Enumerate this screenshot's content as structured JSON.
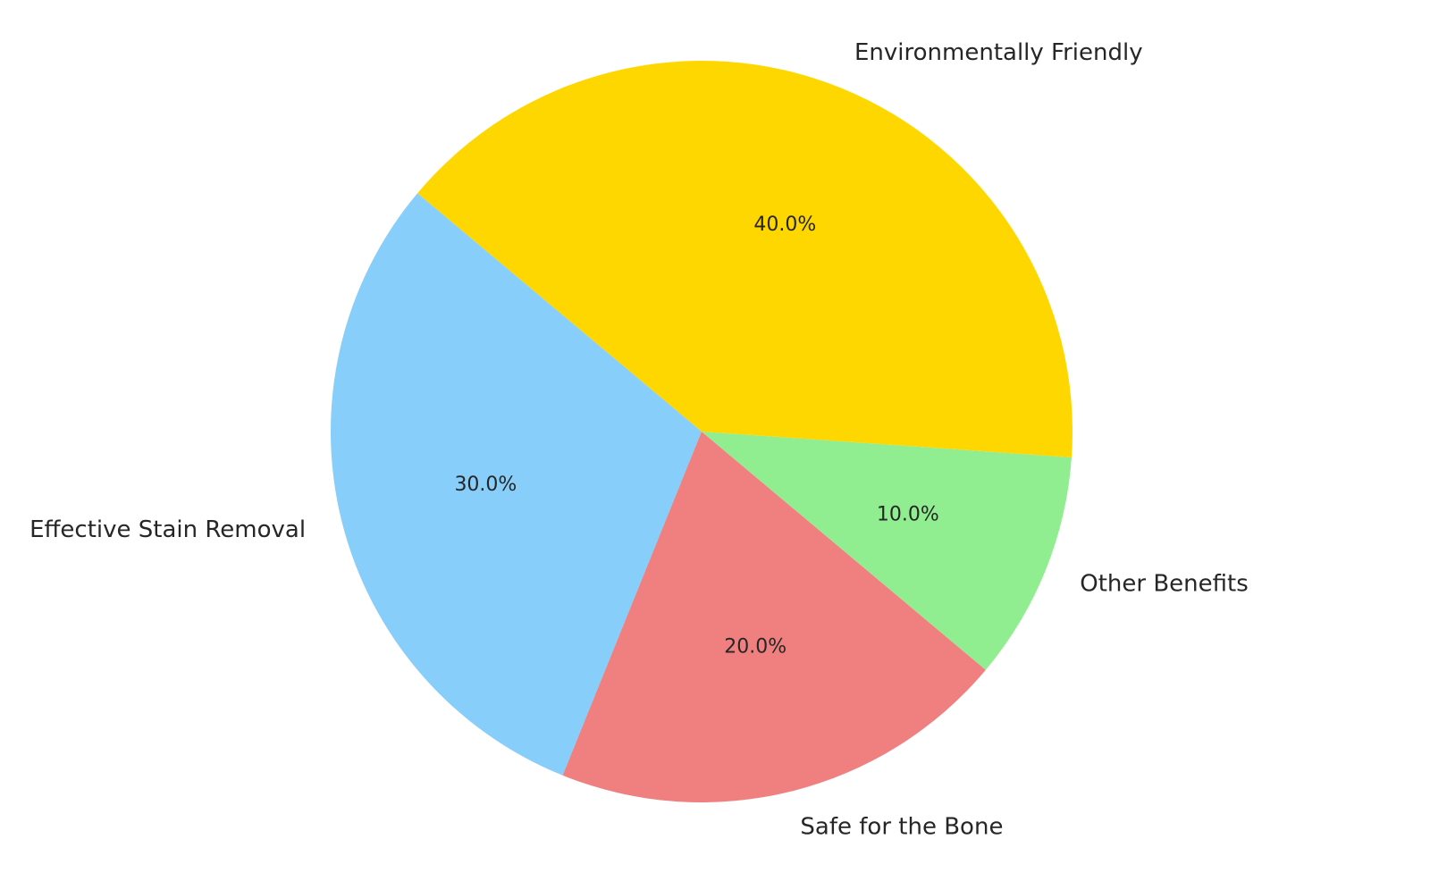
{
  "chart_data": {
    "type": "pie",
    "title": "",
    "start_angle_deg": 140,
    "direction": "counterclockwise",
    "legend": "none",
    "autopct_format": "{v}%",
    "slices": [
      {
        "label": "Effective Stain Removal",
        "value": 30,
        "pct_text": "30.0%",
        "color": "#87CEFA"
      },
      {
        "label": "Safe for the Bone",
        "value": 20,
        "pct_text": "20.0%",
        "color": "#F08080"
      },
      {
        "label": "Other Benefits",
        "value": 10,
        "pct_text": "10.0%",
        "color": "#90EE90"
      },
      {
        "label": "Environmentally Friendly",
        "value": 40,
        "pct_text": "40.0%",
        "color": "#FFD700"
      }
    ]
  }
}
